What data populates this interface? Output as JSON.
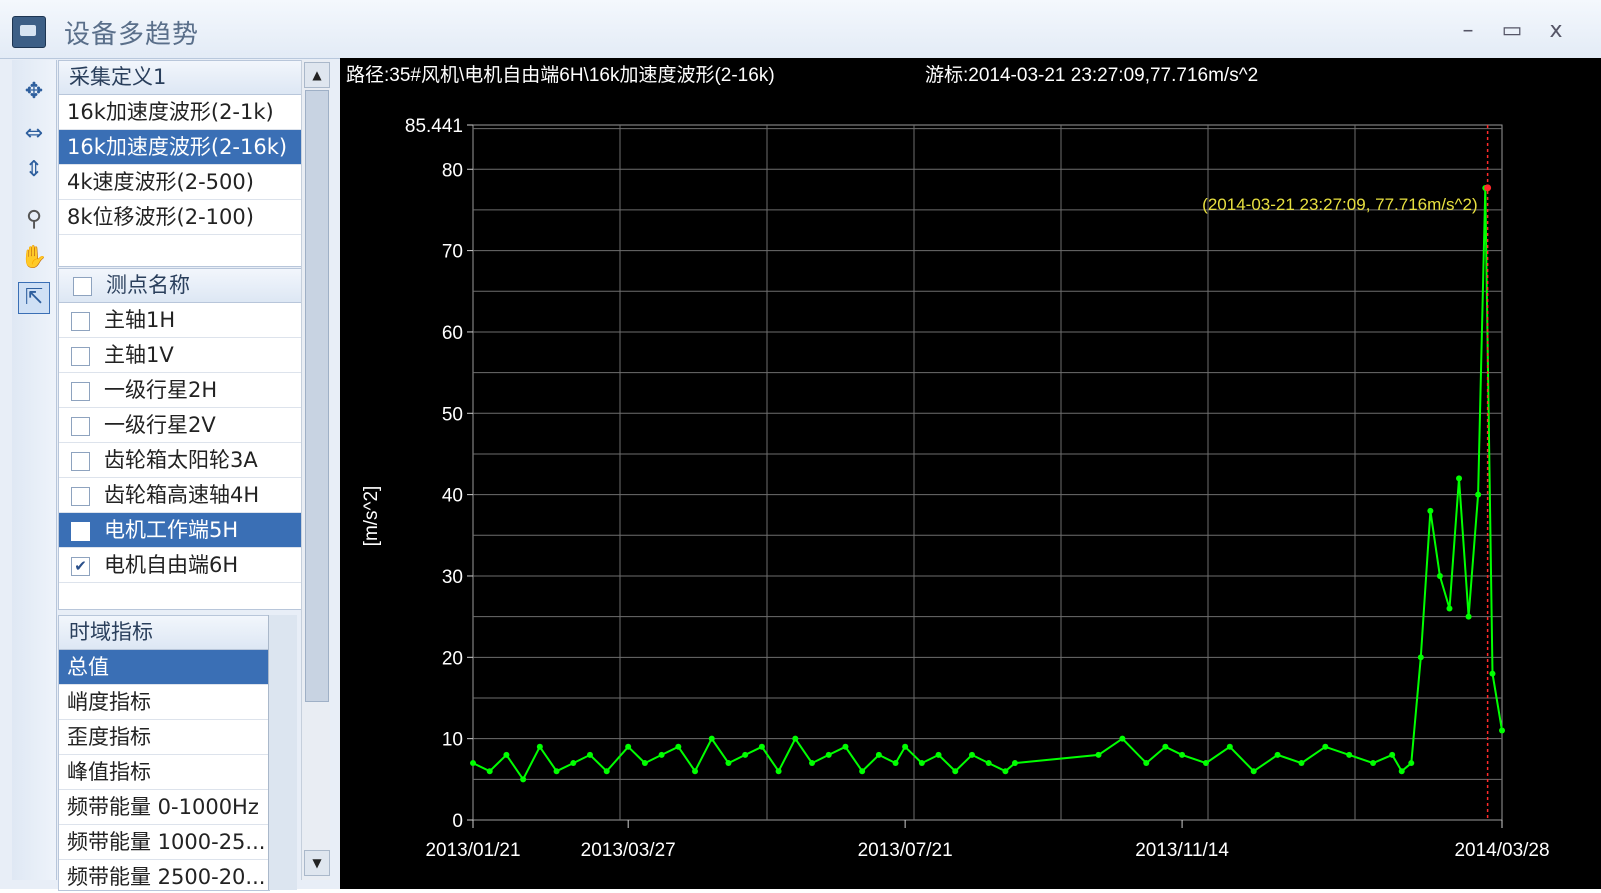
{
  "window": {
    "title": "设备多趋势",
    "controls": [
      "–",
      "▭",
      "x"
    ]
  },
  "toolbar": {
    "tools": [
      "pan-icon",
      "zoom-x-icon",
      "zoom-y-icon",
      "magnifier-icon",
      "hand-icon",
      "pointer-icon"
    ]
  },
  "collection": {
    "header": "采集定义1",
    "items": [
      "16k加速度波形(2-1k)",
      "16k加速度波形(2-16k)",
      "4k速度波形(2-500)",
      "8k位移波形(2-100)"
    ],
    "selected_index": 1
  },
  "points": {
    "header": "测点名称",
    "items": [
      {
        "label": "主轴1H",
        "checked": false
      },
      {
        "label": "主轴1V",
        "checked": false
      },
      {
        "label": "一级行星2H",
        "checked": false
      },
      {
        "label": "一级行星2V",
        "checked": false
      },
      {
        "label": "齿轮箱太阳轮3A",
        "checked": false
      },
      {
        "label": "齿轮箱高速轴4H",
        "checked": false
      },
      {
        "label": "电机工作端5H",
        "checked": false
      },
      {
        "label": "电机自由端6H",
        "checked": true
      }
    ],
    "selected_index": 6
  },
  "indicators": {
    "header": "时域指标",
    "items": [
      "总值",
      "峭度指标",
      "歪度指标",
      "峰值指标",
      "频带能量 0-1000Hz",
      "频带能量 1000-25...",
      "频带能量 2500-20..."
    ],
    "selected_index": 0
  },
  "chart_header": {
    "path": "路径:35#风机\\电机自由端6H\\16k加速度波形(2-16k)",
    "cursor": "游标:2014-03-21 23:27:09,77.716m/s^2"
  },
  "chart_data": {
    "type": "line",
    "title": "",
    "xlabel": "",
    "ylabel": "[m/s^2]",
    "ylim": [
      0,
      85.441
    ],
    "yticks": [
      "85.441",
      "80",
      "70",
      "60",
      "50",
      "40",
      "30",
      "20",
      "10",
      "0"
    ],
    "xticks": [
      "2013/01/21",
      "2013/03/27",
      "2013/07/21",
      "2013/11/14",
      "2014/03/28"
    ],
    "x_range": [
      "2013-01-21",
      "2014-03-28"
    ],
    "grid": true,
    "series_color": "#00ff00",
    "cursor": {
      "x": "2014-03-21 23:27:09",
      "y": 77.716,
      "label": "(2014-03-21 23:27:09, 77.716m/s^2)",
      "color": "#ff2a2a",
      "label_color": "#e8e040"
    },
    "series": [
      {
        "x": [
          "2013-01-21",
          "2013-01-28",
          "2013-02-04",
          "2013-02-11",
          "2013-02-18",
          "2013-02-25",
          "2013-03-04",
          "2013-03-11",
          "2013-03-18",
          "2013-03-27",
          "2013-04-03",
          "2013-04-10",
          "2013-04-17",
          "2013-04-24",
          "2013-05-01",
          "2013-05-08",
          "2013-05-15",
          "2013-05-22",
          "2013-05-29",
          "2013-06-05",
          "2013-06-12",
          "2013-06-19",
          "2013-06-26",
          "2013-07-03",
          "2013-07-10",
          "2013-07-17",
          "2013-07-21",
          "2013-07-28",
          "2013-08-04",
          "2013-08-11",
          "2013-08-18",
          "2013-08-25",
          "2013-09-01",
          "2013-09-05",
          "2013-10-10",
          "2013-10-20",
          "2013-10-30",
          "2013-11-07",
          "2013-11-14",
          "2013-11-24",
          "2013-12-04",
          "2013-12-14",
          "2013-12-24",
          "2014-01-03",
          "2014-01-13",
          "2014-01-23",
          "2014-02-02",
          "2014-02-10",
          "2014-02-14",
          "2014-02-18",
          "2014-02-22",
          "2014-02-26",
          "2014-03-02",
          "2014-03-06",
          "2014-03-10",
          "2014-03-14",
          "2014-03-18",
          "2014-03-21",
          "2014-03-24",
          "2014-03-28"
        ],
        "y": [
          7,
          6,
          8,
          5,
          9,
          6,
          7,
          8,
          6,
          9,
          7,
          8,
          9,
          6,
          10,
          7,
          8,
          9,
          6,
          10,
          7,
          8,
          9,
          6,
          8,
          7,
          9,
          7,
          8,
          6,
          8,
          7,
          6,
          7,
          8,
          10,
          7,
          9,
          8,
          7,
          9,
          6,
          8,
          7,
          9,
          8,
          7,
          8,
          6,
          7,
          20,
          38,
          30,
          26,
          42,
          25,
          40,
          77.7,
          18,
          11
        ]
      }
    ]
  }
}
